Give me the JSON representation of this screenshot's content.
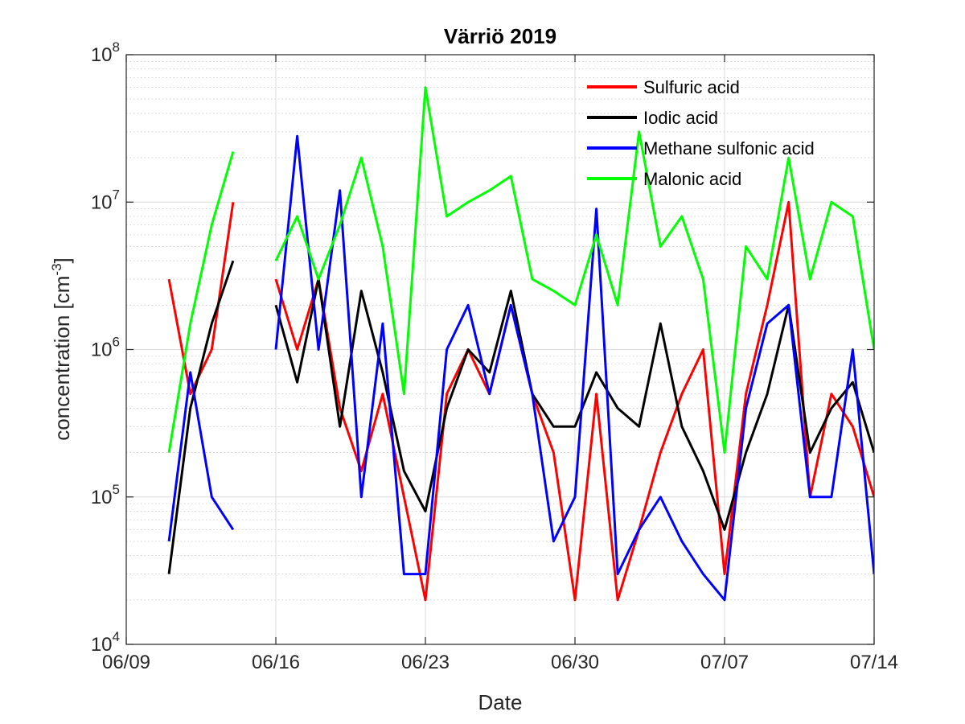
{
  "chart_data": {
    "type": "line",
    "title": "Värriö 2019",
    "xlabel": "Date",
    "ylabel": "concentration [cm",
    "ylabel_superscript": "-3",
    "ylabel_suffix": "]",
    "x_ticks": [
      "06/09",
      "06/16",
      "06/23",
      "06/30",
      "07/07",
      "07/14"
    ],
    "xlim": [
      "2019-06-09",
      "2019-07-14"
    ],
    "yscale": "log",
    "ylim": [
      10000,
      100000000
    ],
    "y_ticks": [
      {
        "base": "10",
        "exp": "4"
      },
      {
        "base": "10",
        "exp": "5"
      },
      {
        "base": "10",
        "exp": "6"
      },
      {
        "base": "10",
        "exp": "7"
      },
      {
        "base": "10",
        "exp": "8"
      }
    ],
    "grid": true,
    "minor_grid": true,
    "legend_position": "top-right",
    "x": [
      "2019-06-10",
      "2019-06-11",
      "2019-06-12",
      "2019-06-13",
      "2019-06-14",
      "2019-06-15",
      "2019-06-16",
      "2019-06-17",
      "2019-06-18",
      "2019-06-19",
      "2019-06-20",
      "2019-06-21",
      "2019-06-22",
      "2019-06-23",
      "2019-06-24",
      "2019-06-25",
      "2019-06-26",
      "2019-06-27",
      "2019-06-28",
      "2019-06-29",
      "2019-06-30",
      "2019-07-01",
      "2019-07-02",
      "2019-07-03",
      "2019-07-04",
      "2019-07-05",
      "2019-07-06",
      "2019-07-07",
      "2019-07-08",
      "2019-07-09",
      "2019-07-10",
      "2019-07-11",
      "2019-07-12",
      "2019-07-13",
      "2019-07-14"
    ],
    "series": [
      {
        "name": "Sulfuric acid",
        "color": "#ff0000",
        "values": [
          null,
          3000000,
          500000,
          1000000,
          10000000,
          null,
          3000000,
          1000000,
          3000000,
          400000,
          150000,
          500000,
          100000,
          20000,
          500000,
          1000000,
          500000,
          2000000,
          500000,
          200000,
          20000,
          500000,
          20000,
          60000,
          200000,
          500000,
          1000000,
          30000,
          500000,
          2000000,
          10000000,
          100000,
          500000,
          300000,
          100000
        ]
      },
      {
        "name": "Iodic acid",
        "color": "#000000",
        "values": [
          null,
          30000,
          400000,
          1500000,
          4000000,
          null,
          2000000,
          600000,
          3000000,
          300000,
          2500000,
          700000,
          150000,
          80000,
          400000,
          1000000,
          700000,
          2500000,
          500000,
          300000,
          300000,
          700000,
          400000,
          300000,
          1500000,
          300000,
          150000,
          60000,
          200000,
          500000,
          2000000,
          200000,
          400000,
          600000,
          200000
        ]
      },
      {
        "name": "Methane sulfonic acid",
        "color": "#0000ff",
        "values": [
          null,
          50000,
          700000,
          100000,
          60000,
          null,
          1000000,
          28000000,
          1000000,
          12000000,
          100000,
          1500000,
          30000,
          30000,
          1000000,
          2000000,
          500000,
          2000000,
          500000,
          50000,
          100000,
          9000000,
          30000,
          60000,
          100000,
          50000,
          30000,
          20000,
          400000,
          1500000,
          2000000,
          100000,
          100000,
          1000000,
          30000
        ]
      },
      {
        "name": "Malonic acid",
        "color": "#00ff00",
        "values": [
          null,
          200000,
          1500000,
          7000000,
          22000000,
          null,
          4000000,
          8000000,
          3000000,
          7000000,
          20000000,
          5000000,
          500000,
          60000000,
          8000000,
          10000000,
          12000000,
          15000000,
          3000000,
          2500000,
          2000000,
          6000000,
          2000000,
          30000000,
          5000000,
          8000000,
          3000000,
          200000,
          5000000,
          3000000,
          20000000,
          3000000,
          10000000,
          8000000,
          1000000
        ]
      }
    ]
  }
}
